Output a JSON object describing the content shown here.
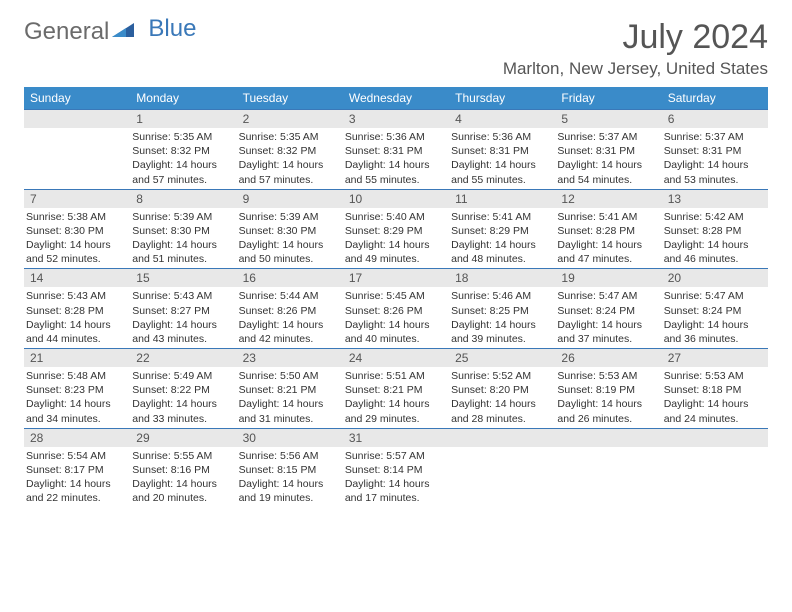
{
  "logo": {
    "part1": "General",
    "part2": "Blue"
  },
  "title": {
    "month": "July 2024",
    "location": "Marlton, New Jersey, United States"
  },
  "colors": {
    "header_bg": "#3a8bc9",
    "header_text": "#ffffff",
    "daynum_bg": "#e8e8e8",
    "daynum_border": "#3a78b8",
    "text": "#333333",
    "title_text": "#555555"
  },
  "weekdays": [
    "Sunday",
    "Monday",
    "Tuesday",
    "Wednesday",
    "Thursday",
    "Friday",
    "Saturday"
  ],
  "weeks": [
    [
      {
        "num": "",
        "sunrise": "",
        "sunset": "",
        "daylight": ""
      },
      {
        "num": "1",
        "sunrise": "Sunrise: 5:35 AM",
        "sunset": "Sunset: 8:32 PM",
        "daylight": "Daylight: 14 hours and 57 minutes."
      },
      {
        "num": "2",
        "sunrise": "Sunrise: 5:35 AM",
        "sunset": "Sunset: 8:32 PM",
        "daylight": "Daylight: 14 hours and 57 minutes."
      },
      {
        "num": "3",
        "sunrise": "Sunrise: 5:36 AM",
        "sunset": "Sunset: 8:31 PM",
        "daylight": "Daylight: 14 hours and 55 minutes."
      },
      {
        "num": "4",
        "sunrise": "Sunrise: 5:36 AM",
        "sunset": "Sunset: 8:31 PM",
        "daylight": "Daylight: 14 hours and 55 minutes."
      },
      {
        "num": "5",
        "sunrise": "Sunrise: 5:37 AM",
        "sunset": "Sunset: 8:31 PM",
        "daylight": "Daylight: 14 hours and 54 minutes."
      },
      {
        "num": "6",
        "sunrise": "Sunrise: 5:37 AM",
        "sunset": "Sunset: 8:31 PM",
        "daylight": "Daylight: 14 hours and 53 minutes."
      }
    ],
    [
      {
        "num": "7",
        "sunrise": "Sunrise: 5:38 AM",
        "sunset": "Sunset: 8:30 PM",
        "daylight": "Daylight: 14 hours and 52 minutes."
      },
      {
        "num": "8",
        "sunrise": "Sunrise: 5:39 AM",
        "sunset": "Sunset: 8:30 PM",
        "daylight": "Daylight: 14 hours and 51 minutes."
      },
      {
        "num": "9",
        "sunrise": "Sunrise: 5:39 AM",
        "sunset": "Sunset: 8:30 PM",
        "daylight": "Daylight: 14 hours and 50 minutes."
      },
      {
        "num": "10",
        "sunrise": "Sunrise: 5:40 AM",
        "sunset": "Sunset: 8:29 PM",
        "daylight": "Daylight: 14 hours and 49 minutes."
      },
      {
        "num": "11",
        "sunrise": "Sunrise: 5:41 AM",
        "sunset": "Sunset: 8:29 PM",
        "daylight": "Daylight: 14 hours and 48 minutes."
      },
      {
        "num": "12",
        "sunrise": "Sunrise: 5:41 AM",
        "sunset": "Sunset: 8:28 PM",
        "daylight": "Daylight: 14 hours and 47 minutes."
      },
      {
        "num": "13",
        "sunrise": "Sunrise: 5:42 AM",
        "sunset": "Sunset: 8:28 PM",
        "daylight": "Daylight: 14 hours and 46 minutes."
      }
    ],
    [
      {
        "num": "14",
        "sunrise": "Sunrise: 5:43 AM",
        "sunset": "Sunset: 8:28 PM",
        "daylight": "Daylight: 14 hours and 44 minutes."
      },
      {
        "num": "15",
        "sunrise": "Sunrise: 5:43 AM",
        "sunset": "Sunset: 8:27 PM",
        "daylight": "Daylight: 14 hours and 43 minutes."
      },
      {
        "num": "16",
        "sunrise": "Sunrise: 5:44 AM",
        "sunset": "Sunset: 8:26 PM",
        "daylight": "Daylight: 14 hours and 42 minutes."
      },
      {
        "num": "17",
        "sunrise": "Sunrise: 5:45 AM",
        "sunset": "Sunset: 8:26 PM",
        "daylight": "Daylight: 14 hours and 40 minutes."
      },
      {
        "num": "18",
        "sunrise": "Sunrise: 5:46 AM",
        "sunset": "Sunset: 8:25 PM",
        "daylight": "Daylight: 14 hours and 39 minutes."
      },
      {
        "num": "19",
        "sunrise": "Sunrise: 5:47 AM",
        "sunset": "Sunset: 8:24 PM",
        "daylight": "Daylight: 14 hours and 37 minutes."
      },
      {
        "num": "20",
        "sunrise": "Sunrise: 5:47 AM",
        "sunset": "Sunset: 8:24 PM",
        "daylight": "Daylight: 14 hours and 36 minutes."
      }
    ],
    [
      {
        "num": "21",
        "sunrise": "Sunrise: 5:48 AM",
        "sunset": "Sunset: 8:23 PM",
        "daylight": "Daylight: 14 hours and 34 minutes."
      },
      {
        "num": "22",
        "sunrise": "Sunrise: 5:49 AM",
        "sunset": "Sunset: 8:22 PM",
        "daylight": "Daylight: 14 hours and 33 minutes."
      },
      {
        "num": "23",
        "sunrise": "Sunrise: 5:50 AM",
        "sunset": "Sunset: 8:21 PM",
        "daylight": "Daylight: 14 hours and 31 minutes."
      },
      {
        "num": "24",
        "sunrise": "Sunrise: 5:51 AM",
        "sunset": "Sunset: 8:21 PM",
        "daylight": "Daylight: 14 hours and 29 minutes."
      },
      {
        "num": "25",
        "sunrise": "Sunrise: 5:52 AM",
        "sunset": "Sunset: 8:20 PM",
        "daylight": "Daylight: 14 hours and 28 minutes."
      },
      {
        "num": "26",
        "sunrise": "Sunrise: 5:53 AM",
        "sunset": "Sunset: 8:19 PM",
        "daylight": "Daylight: 14 hours and 26 minutes."
      },
      {
        "num": "27",
        "sunrise": "Sunrise: 5:53 AM",
        "sunset": "Sunset: 8:18 PM",
        "daylight": "Daylight: 14 hours and 24 minutes."
      }
    ],
    [
      {
        "num": "28",
        "sunrise": "Sunrise: 5:54 AM",
        "sunset": "Sunset: 8:17 PM",
        "daylight": "Daylight: 14 hours and 22 minutes."
      },
      {
        "num": "29",
        "sunrise": "Sunrise: 5:55 AM",
        "sunset": "Sunset: 8:16 PM",
        "daylight": "Daylight: 14 hours and 20 minutes."
      },
      {
        "num": "30",
        "sunrise": "Sunrise: 5:56 AM",
        "sunset": "Sunset: 8:15 PM",
        "daylight": "Daylight: 14 hours and 19 minutes."
      },
      {
        "num": "31",
        "sunrise": "Sunrise: 5:57 AM",
        "sunset": "Sunset: 8:14 PM",
        "daylight": "Daylight: 14 hours and 17 minutes."
      },
      {
        "num": "",
        "sunrise": "",
        "sunset": "",
        "daylight": ""
      },
      {
        "num": "",
        "sunrise": "",
        "sunset": "",
        "daylight": ""
      },
      {
        "num": "",
        "sunrise": "",
        "sunset": "",
        "daylight": ""
      }
    ]
  ]
}
